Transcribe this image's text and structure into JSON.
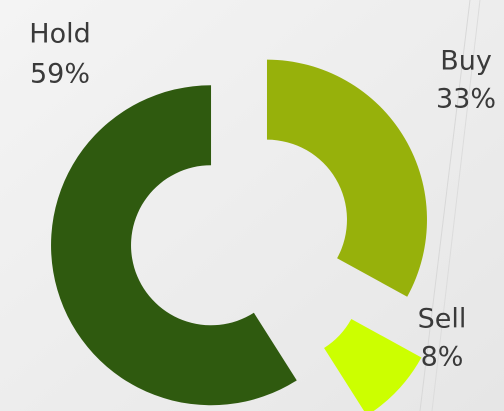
{
  "chart_data": {
    "type": "donut",
    "categories": [
      "Buy",
      "Sell",
      "Hold"
    ],
    "values": [
      33,
      8,
      59
    ],
    "value_labels": [
      "33%",
      "8%",
      "59%"
    ],
    "colors": [
      "#97b10b",
      "#ccff00",
      "#2f5a0f"
    ]
  }
}
